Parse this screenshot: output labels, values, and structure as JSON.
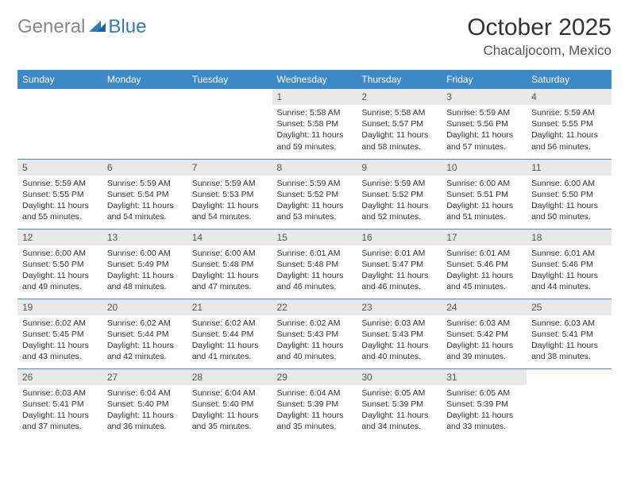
{
  "logo": {
    "text_left": "General",
    "text_right": "Blue"
  },
  "title": "October 2025",
  "location": "Chacaljocom, Mexico",
  "colors": {
    "header_bg": "#3d88c7",
    "header_fg": "#ffffff",
    "daynum_bg": "#e9e9e9",
    "rule": "#3d88c7",
    "logo_gray": "#888888",
    "logo_blue": "#2f7bbf"
  },
  "weekdays": [
    "Sunday",
    "Monday",
    "Tuesday",
    "Wednesday",
    "Thursday",
    "Friday",
    "Saturday"
  ],
  "weeks": [
    [
      {
        "day": "",
        "lines": []
      },
      {
        "day": "",
        "lines": []
      },
      {
        "day": "",
        "lines": []
      },
      {
        "day": "1",
        "lines": [
          "Sunrise: 5:58 AM",
          "Sunset: 5:58 PM",
          "Daylight: 11 hours and 59 minutes."
        ]
      },
      {
        "day": "2",
        "lines": [
          "Sunrise: 5:58 AM",
          "Sunset: 5:57 PM",
          "Daylight: 11 hours and 58 minutes."
        ]
      },
      {
        "day": "3",
        "lines": [
          "Sunrise: 5:59 AM",
          "Sunset: 5:56 PM",
          "Daylight: 11 hours and 57 minutes."
        ]
      },
      {
        "day": "4",
        "lines": [
          "Sunrise: 5:59 AM",
          "Sunset: 5:55 PM",
          "Daylight: 11 hours and 56 minutes."
        ]
      }
    ],
    [
      {
        "day": "5",
        "lines": [
          "Sunrise: 5:59 AM",
          "Sunset: 5:55 PM",
          "Daylight: 11 hours and 55 minutes."
        ]
      },
      {
        "day": "6",
        "lines": [
          "Sunrise: 5:59 AM",
          "Sunset: 5:54 PM",
          "Daylight: 11 hours and 54 minutes."
        ]
      },
      {
        "day": "7",
        "lines": [
          "Sunrise: 5:59 AM",
          "Sunset: 5:53 PM",
          "Daylight: 11 hours and 54 minutes."
        ]
      },
      {
        "day": "8",
        "lines": [
          "Sunrise: 5:59 AM",
          "Sunset: 5:52 PM",
          "Daylight: 11 hours and 53 minutes."
        ]
      },
      {
        "day": "9",
        "lines": [
          "Sunrise: 5:59 AM",
          "Sunset: 5:52 PM",
          "Daylight: 11 hours and 52 minutes."
        ]
      },
      {
        "day": "10",
        "lines": [
          "Sunrise: 6:00 AM",
          "Sunset: 5:51 PM",
          "Daylight: 11 hours and 51 minutes."
        ]
      },
      {
        "day": "11",
        "lines": [
          "Sunrise: 6:00 AM",
          "Sunset: 5:50 PM",
          "Daylight: 11 hours and 50 minutes."
        ]
      }
    ],
    [
      {
        "day": "12",
        "lines": [
          "Sunrise: 6:00 AM",
          "Sunset: 5:50 PM",
          "Daylight: 11 hours and 49 minutes."
        ]
      },
      {
        "day": "13",
        "lines": [
          "Sunrise: 6:00 AM",
          "Sunset: 5:49 PM",
          "Daylight: 11 hours and 48 minutes."
        ]
      },
      {
        "day": "14",
        "lines": [
          "Sunrise: 6:00 AM",
          "Sunset: 5:48 PM",
          "Daylight: 11 hours and 47 minutes."
        ]
      },
      {
        "day": "15",
        "lines": [
          "Sunrise: 6:01 AM",
          "Sunset: 5:48 PM",
          "Daylight: 11 hours and 46 minutes."
        ]
      },
      {
        "day": "16",
        "lines": [
          "Sunrise: 6:01 AM",
          "Sunset: 5:47 PM",
          "Daylight: 11 hours and 46 minutes."
        ]
      },
      {
        "day": "17",
        "lines": [
          "Sunrise: 6:01 AM",
          "Sunset: 5:46 PM",
          "Daylight: 11 hours and 45 minutes."
        ]
      },
      {
        "day": "18",
        "lines": [
          "Sunrise: 6:01 AM",
          "Sunset: 5:46 PM",
          "Daylight: 11 hours and 44 minutes."
        ]
      }
    ],
    [
      {
        "day": "19",
        "lines": [
          "Sunrise: 6:02 AM",
          "Sunset: 5:45 PM",
          "Daylight: 11 hours and 43 minutes."
        ]
      },
      {
        "day": "20",
        "lines": [
          "Sunrise: 6:02 AM",
          "Sunset: 5:44 PM",
          "Daylight: 11 hours and 42 minutes."
        ]
      },
      {
        "day": "21",
        "lines": [
          "Sunrise: 6:02 AM",
          "Sunset: 5:44 PM",
          "Daylight: 11 hours and 41 minutes."
        ]
      },
      {
        "day": "22",
        "lines": [
          "Sunrise: 6:02 AM",
          "Sunset: 5:43 PM",
          "Daylight: 11 hours and 40 minutes."
        ]
      },
      {
        "day": "23",
        "lines": [
          "Sunrise: 6:03 AM",
          "Sunset: 5:43 PM",
          "Daylight: 11 hours and 40 minutes."
        ]
      },
      {
        "day": "24",
        "lines": [
          "Sunrise: 6:03 AM",
          "Sunset: 5:42 PM",
          "Daylight: 11 hours and 39 minutes."
        ]
      },
      {
        "day": "25",
        "lines": [
          "Sunrise: 6:03 AM",
          "Sunset: 5:41 PM",
          "Daylight: 11 hours and 38 minutes."
        ]
      }
    ],
    [
      {
        "day": "26",
        "lines": [
          "Sunrise: 6:03 AM",
          "Sunset: 5:41 PM",
          "Daylight: 11 hours and 37 minutes."
        ]
      },
      {
        "day": "27",
        "lines": [
          "Sunrise: 6:04 AM",
          "Sunset: 5:40 PM",
          "Daylight: 11 hours and 36 minutes."
        ]
      },
      {
        "day": "28",
        "lines": [
          "Sunrise: 6:04 AM",
          "Sunset: 5:40 PM",
          "Daylight: 11 hours and 35 minutes."
        ]
      },
      {
        "day": "29",
        "lines": [
          "Sunrise: 6:04 AM",
          "Sunset: 5:39 PM",
          "Daylight: 11 hours and 35 minutes."
        ]
      },
      {
        "day": "30",
        "lines": [
          "Sunrise: 6:05 AM",
          "Sunset: 5:39 PM",
          "Daylight: 11 hours and 34 minutes."
        ]
      },
      {
        "day": "31",
        "lines": [
          "Sunrise: 6:05 AM",
          "Sunset: 5:39 PM",
          "Daylight: 11 hours and 33 minutes."
        ]
      },
      {
        "day": "",
        "lines": []
      }
    ]
  ]
}
